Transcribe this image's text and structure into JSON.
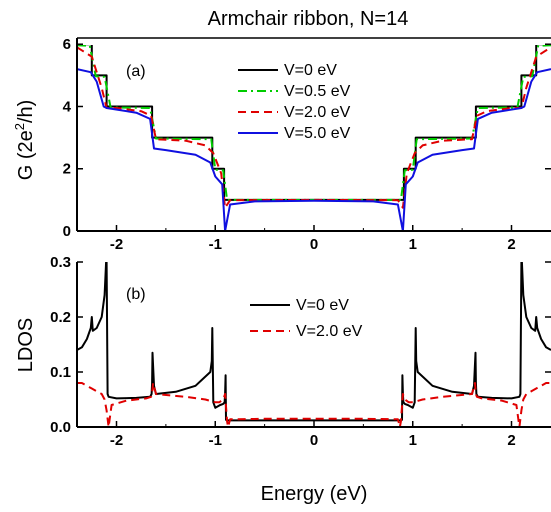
{
  "title": "Armchair ribbon, N=14",
  "chart_data": [
    {
      "type": "line",
      "panel_label": "(a)",
      "ylabel": "G (2e²/h)",
      "ylabel_main": "G (2e",
      "ylabel_sup": "2",
      "ylabel_tail": "/h)",
      "xlim": [
        -2.4,
        2.4
      ],
      "ylim": [
        0,
        6.2
      ],
      "xticks": [
        "-2",
        "-1",
        "0",
        "1",
        "2"
      ],
      "xtick_values": [
        -2,
        -1,
        0,
        1,
        2
      ],
      "yticks": [
        "0",
        "2",
        "4",
        "6"
      ],
      "ytick_values": [
        0,
        2,
        4,
        6
      ],
      "grid": false,
      "legend_position": "upper-right",
      "series": [
        {
          "name": "V=0 eV",
          "color": "#000000",
          "dash": "solid",
          "x": [
            0,
            0.91,
            0.91,
            1.03,
            1.03,
            1.64,
            1.64,
            2.1,
            2.1,
            2.25,
            2.25,
            2.4
          ],
          "y": [
            1,
            1,
            2,
            2,
            3,
            3,
            4,
            4,
            5,
            5,
            6,
            6
          ]
        },
        {
          "name": "V=0.5 eV",
          "color": "#00cc00",
          "dash": "dashdot",
          "x": [
            0,
            0.88,
            0.92,
            1.0,
            1.04,
            1.6,
            1.66,
            2.06,
            2.12,
            2.21,
            2.27,
            2.4
          ],
          "y": [
            1,
            1,
            1.95,
            1.97,
            2.95,
            2.97,
            3.95,
            3.97,
            4.95,
            4.97,
            5.95,
            5.97
          ]
        },
        {
          "name": "V=2.0 eV",
          "color": "#e00000",
          "dash": "dashed",
          "x": [
            0,
            0.85,
            0.9,
            0.94,
            1.02,
            1.1,
            1.3,
            1.6,
            1.65,
            1.75,
            2.0,
            2.1,
            2.15,
            2.25,
            2.4
          ],
          "y": [
            1,
            0.99,
            0.75,
            1.85,
            2.5,
            2.75,
            2.9,
            2.95,
            3.7,
            3.85,
            3.95,
            3.95,
            4.6,
            5.6,
            5.9
          ]
        },
        {
          "name": "V=5.0 eV",
          "color": "#1010e0",
          "dash": "solid",
          "x": [
            0,
            0.6,
            0.85,
            0.9,
            0.93,
            1.0,
            1.05,
            1.2,
            1.5,
            1.62,
            1.66,
            1.8,
            2.1,
            2.13,
            2.2,
            2.26,
            2.4
          ],
          "y": [
            0.97,
            0.95,
            0.85,
            0.0,
            1.5,
            1.75,
            2.2,
            2.45,
            2.6,
            2.65,
            3.6,
            3.8,
            3.95,
            4.0,
            4.8,
            5.1,
            5.2
          ]
        }
      ]
    },
    {
      "type": "line",
      "panel_label": "(b)",
      "xlabel": "Energy (eV)",
      "ylabel": "LDOS",
      "xlim": [
        -2.4,
        2.4
      ],
      "ylim": [
        0,
        0.3
      ],
      "xticks": [
        "-2",
        "-1",
        "0",
        "1",
        "2"
      ],
      "xtick_values": [
        -2,
        -1,
        0,
        1,
        2
      ],
      "yticks": [
        "0.0",
        "0.1",
        "0.2",
        "0.3"
      ],
      "ytick_values": [
        0,
        0.1,
        0.2,
        0.3
      ],
      "grid": false,
      "legend_position": "upper-right",
      "series": [
        {
          "name": "V=0 eV",
          "color": "#000000",
          "dash": "solid",
          "x": [
            0.0,
            0.88,
            0.891,
            0.895,
            0.9,
            0.905,
            0.92,
            0.95,
            1.0,
            1.02,
            1.03,
            1.035,
            1.05,
            1.2,
            1.4,
            1.6,
            1.62,
            1.635,
            1.64,
            1.645,
            1.66,
            1.8,
            2.0,
            2.08,
            2.09,
            2.1,
            2.105,
            2.12,
            2.15,
            2.2,
            2.24,
            2.25,
            2.26,
            2.3,
            2.35,
            2.4
          ],
          "y": [
            0.012,
            0.012,
            0.013,
            0.094,
            0.06,
            0.045,
            0.042,
            0.04,
            0.035,
            0.045,
            0.18,
            0.12,
            0.1,
            0.075,
            0.064,
            0.06,
            0.075,
            0.135,
            0.08,
            0.06,
            0.055,
            0.053,
            0.052,
            0.055,
            0.06,
            0.3,
            0.3,
            0.24,
            0.2,
            0.18,
            0.175,
            0.2,
            0.18,
            0.16,
            0.145,
            0.14
          ]
        },
        {
          "name": "V=2.0 eV",
          "color": "#e00000",
          "dash": "dashed",
          "x": [
            0.0,
            0.5,
            0.85,
            0.87,
            0.88,
            0.9,
            0.92,
            0.96,
            1.0,
            1.1,
            1.3,
            1.6,
            1.63,
            1.64,
            1.65,
            1.7,
            1.9,
            2.05,
            2.08,
            2.1,
            2.12,
            2.15,
            2.2,
            2.25,
            2.3,
            2.35,
            2.4
          ],
          "y": [
            0.015,
            0.015,
            0.014,
            0.0,
            0.01,
            0.06,
            0.05,
            0.045,
            0.045,
            0.05,
            0.055,
            0.06,
            0.08,
            0.06,
            0.055,
            0.052,
            0.048,
            0.04,
            0.0,
            0.03,
            0.05,
            0.06,
            0.065,
            0.07,
            0.075,
            0.08,
            0.08
          ]
        }
      ]
    }
  ]
}
